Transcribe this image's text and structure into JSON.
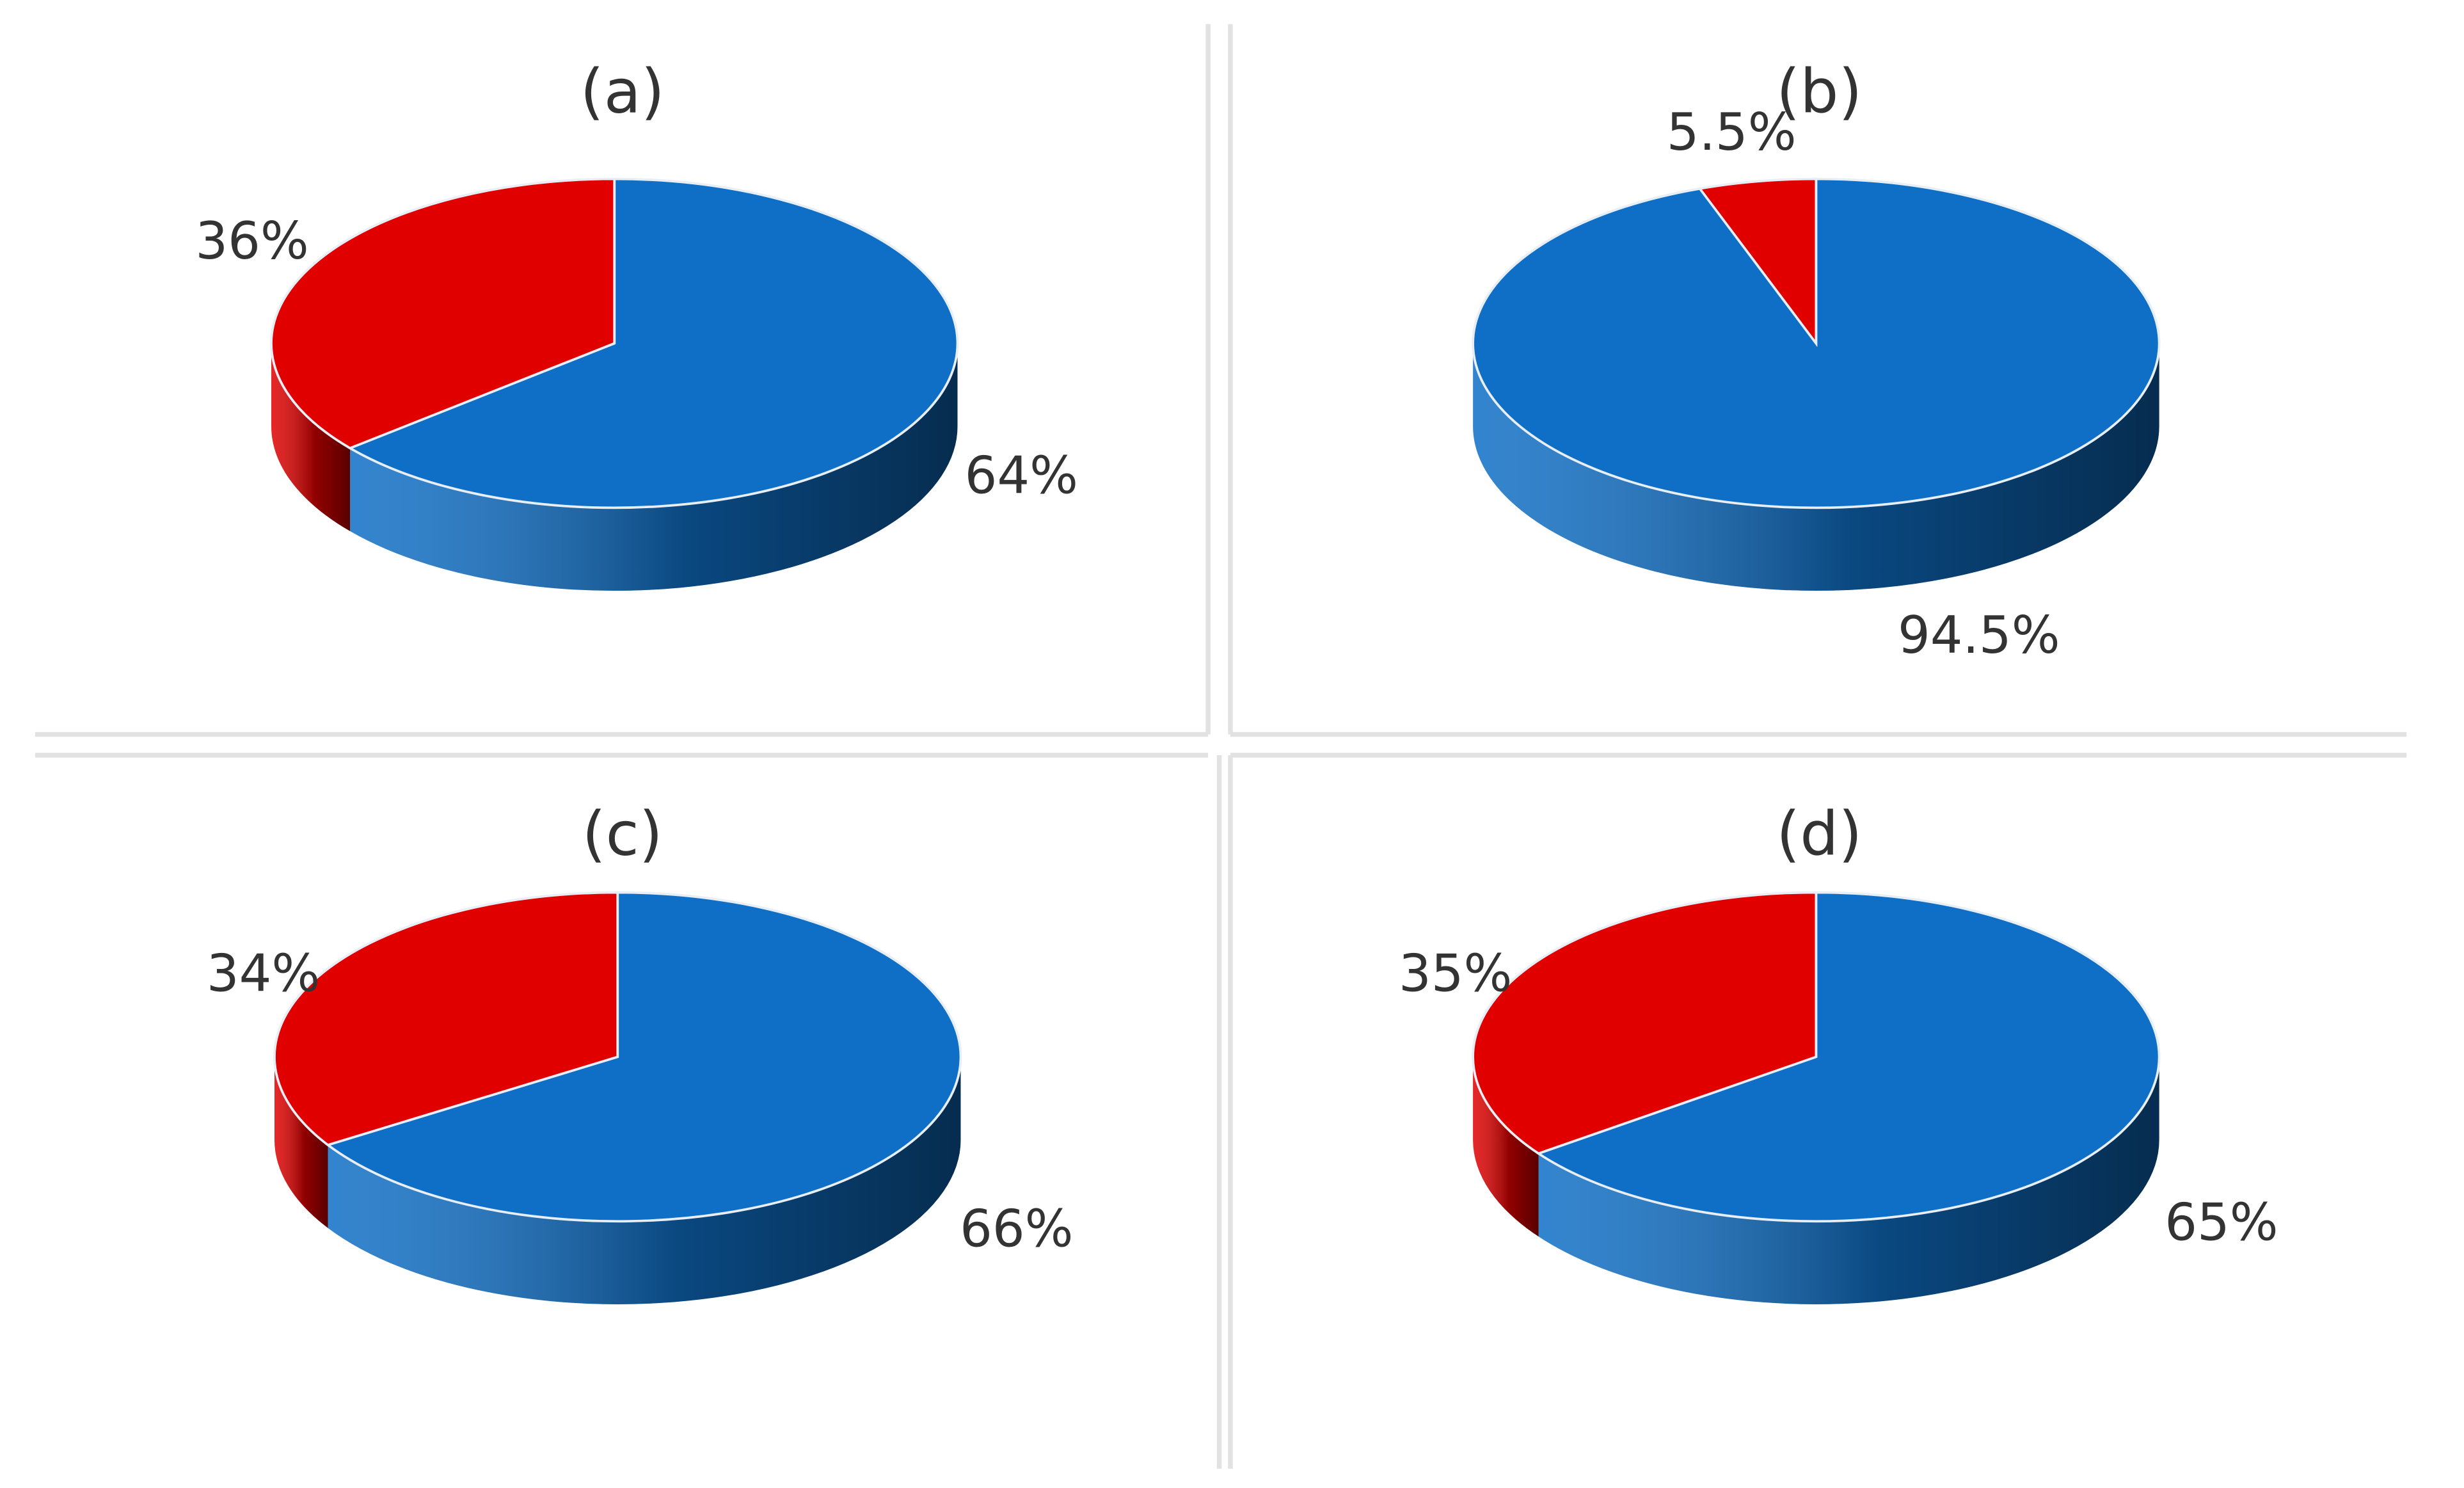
{
  "chart_data": [
    {
      "type": "pie",
      "title": "(a)",
      "values": [
        64,
        36
      ],
      "value_labels": [
        "64%",
        "36%"
      ],
      "colors": [
        "#0f6fc6",
        "#e00000"
      ]
    },
    {
      "type": "pie",
      "title": "(b)",
      "values": [
        94.5,
        5.5
      ],
      "value_labels": [
        "94.5%",
        "5.5%"
      ],
      "colors": [
        "#0f6fc6",
        "#e00000"
      ]
    },
    {
      "type": "pie",
      "title": "(c)",
      "values": [
        66,
        34
      ],
      "value_labels": [
        "66%",
        "34%"
      ],
      "colors": [
        "#0f6fc6",
        "#e00000"
      ]
    },
    {
      "type": "pie",
      "title": "(d)",
      "values": [
        65,
        35
      ],
      "value_labels": [
        "65%",
        "35%"
      ],
      "colors": [
        "#0f6fc6",
        "#e00000"
      ]
    }
  ]
}
